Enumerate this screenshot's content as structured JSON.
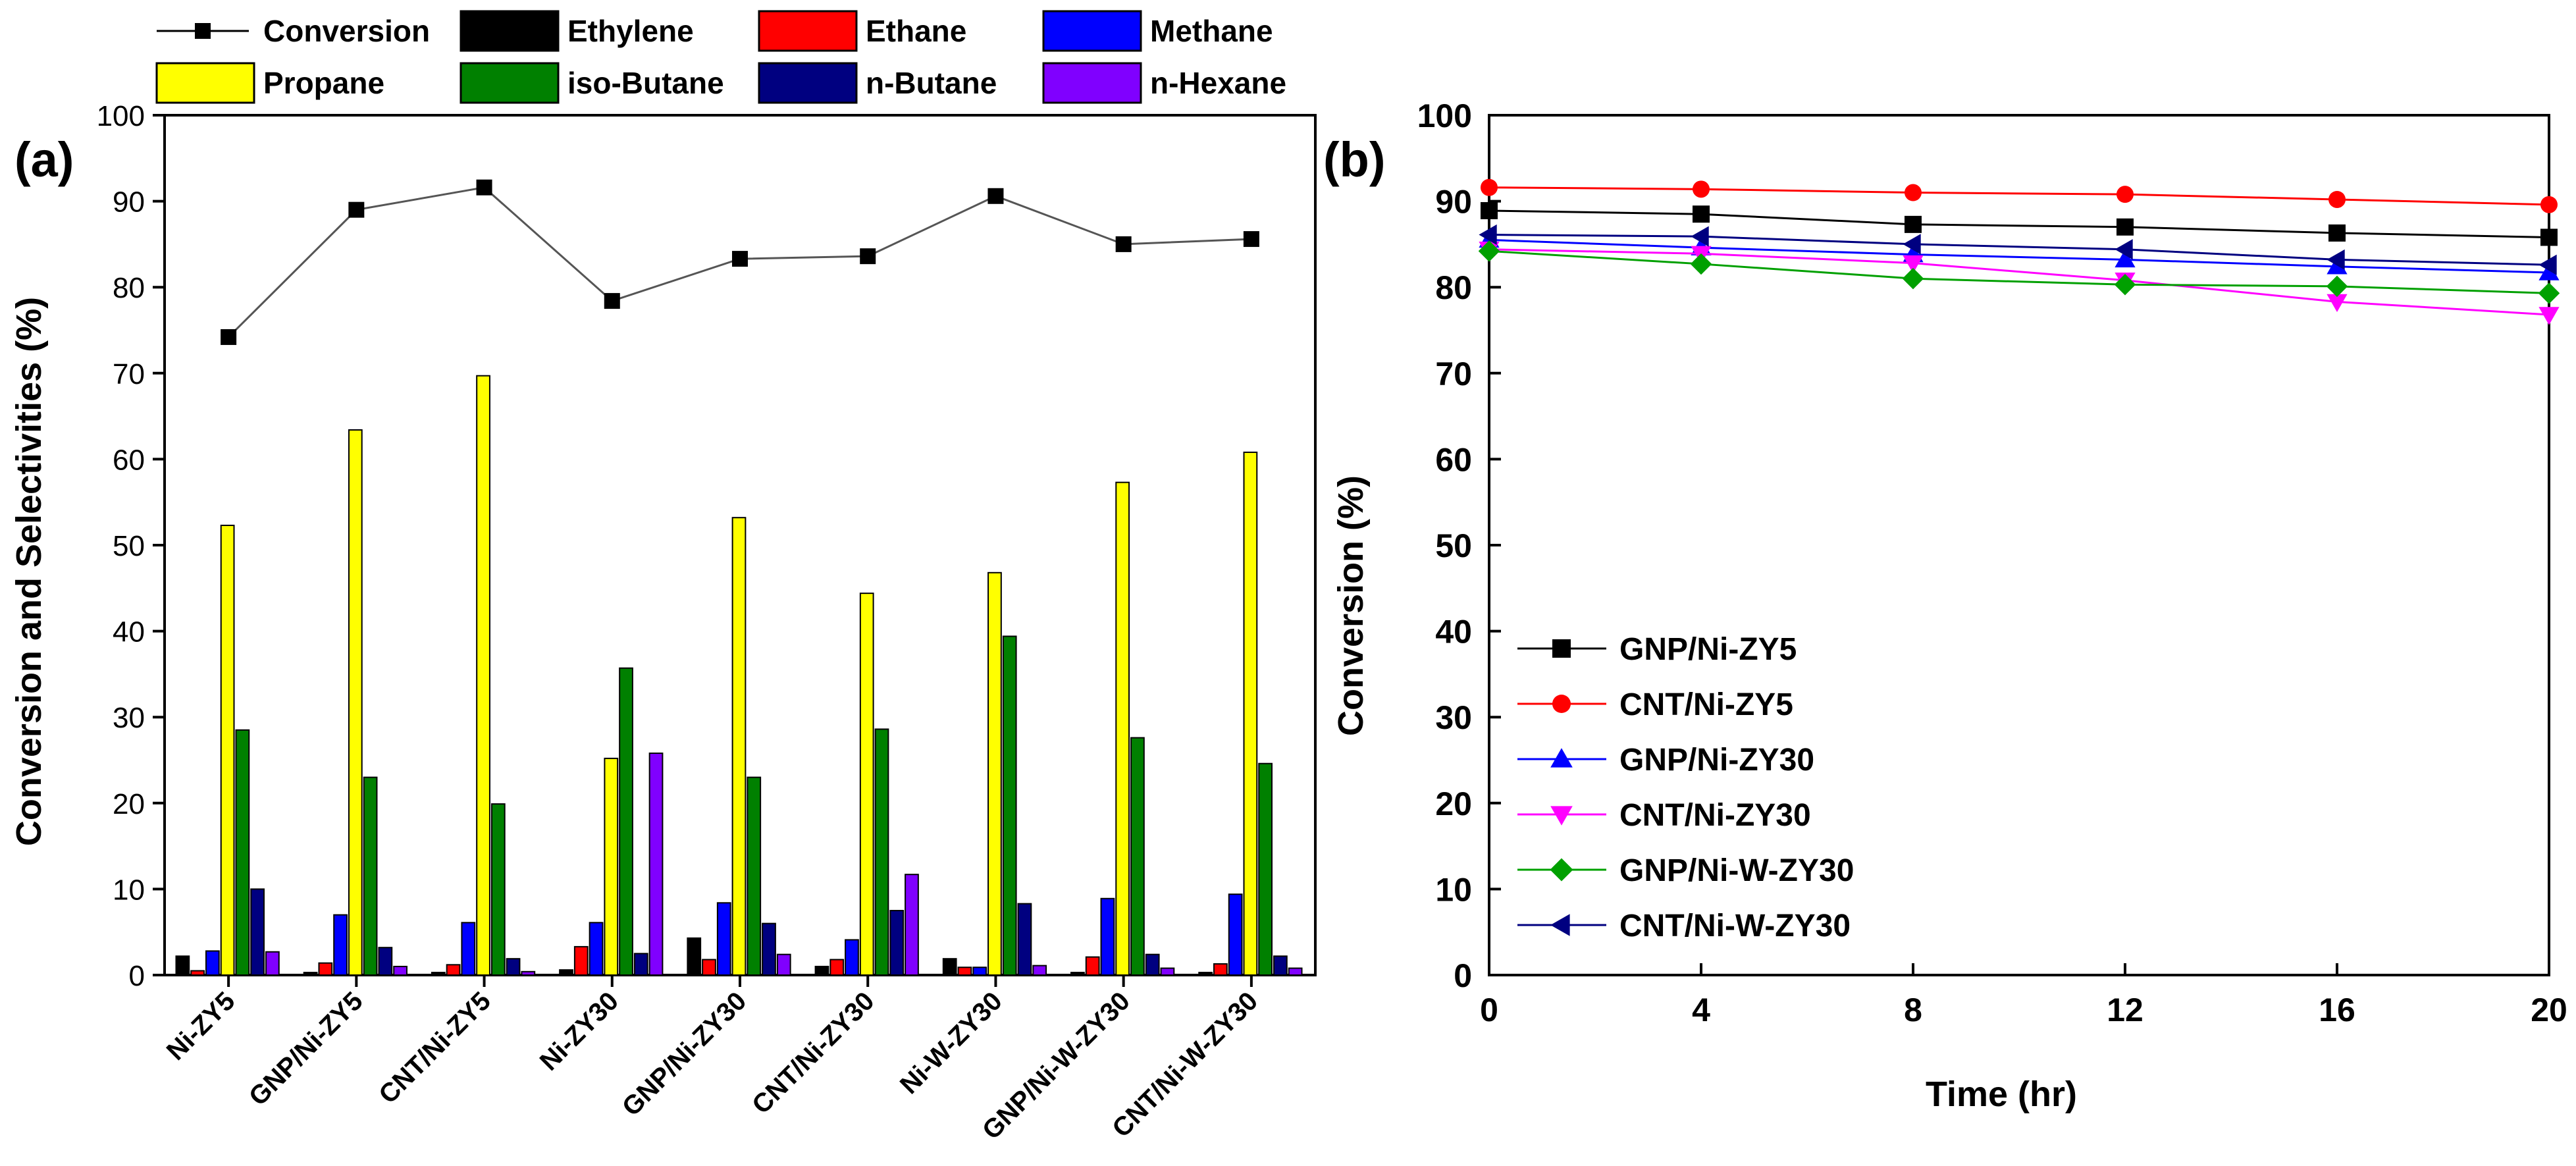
{
  "chart_data": [
    {
      "type": "bar",
      "panel_label": "(a)",
      "ylabel": "Conversion and Selectivities (%)",
      "ylim": [
        0,
        100
      ],
      "yticks": [
        0,
        10,
        20,
        30,
        40,
        50,
        60,
        70,
        80,
        90,
        100
      ],
      "grid": false,
      "legend_position": "top",
      "categories": [
        "Ni-ZY5",
        "GNP/Ni-ZY5",
        "CNT/Ni-ZY5",
        "Ni-ZY30",
        "GNP/Ni-ZY30",
        "CNT/Ni-ZY30",
        "Ni-W-ZY30",
        "GNP/Ni-W-ZY30",
        "CNT/Ni-W-ZY30"
      ],
      "line_series": {
        "name": "Conversion",
        "color": "#000000",
        "values": [
          74.2,
          89.0,
          91.6,
          78.4,
          83.3,
          83.6,
          90.6,
          85.0,
          85.6
        ]
      },
      "series": [
        {
          "name": "Ethylene",
          "color": "#000000",
          "values": [
            2.2,
            0.3,
            0.3,
            0.6,
            4.3,
            1.0,
            1.9,
            0.3,
            0.3
          ]
        },
        {
          "name": "Ethane",
          "color": "#ff0000",
          "values": [
            0.5,
            1.4,
            1.2,
            3.3,
            1.8,
            1.8,
            0.9,
            2.1,
            1.3
          ]
        },
        {
          "name": "Methane",
          "color": "#0000ff",
          "values": [
            2.8,
            7.0,
            6.1,
            6.1,
            8.4,
            4.1,
            0.9,
            8.9,
            9.4
          ]
        },
        {
          "name": "Propane",
          "color": "#ffff00",
          "values": [
            52.3,
            63.4,
            69.7,
            25.2,
            53.2,
            44.4,
            46.8,
            57.3,
            60.8
          ]
        },
        {
          "name": "iso-Butane",
          "color": "#008000",
          "values": [
            28.5,
            23.0,
            19.9,
            35.7,
            23.0,
            28.6,
            39.4,
            27.6,
            24.6
          ]
        },
        {
          "name": "n-Butane",
          "color": "#000080",
          "values": [
            10.0,
            3.2,
            1.9,
            2.5,
            6.0,
            7.5,
            8.3,
            2.4,
            2.2
          ]
        },
        {
          "name": "n-Hexane",
          "color": "#8000ff",
          "values": [
            2.7,
            1.0,
            0.4,
            25.8,
            2.4,
            11.7,
            1.1,
            0.8,
            0.8
          ]
        }
      ]
    },
    {
      "type": "line",
      "panel_label": "(b)",
      "xlabel": "Time (hr)",
      "ylabel": "Conversion (%)",
      "xlim": [
        0,
        20
      ],
      "ylim": [
        0,
        100
      ],
      "xticks": [
        0,
        4,
        8,
        12,
        16,
        20
      ],
      "yticks": [
        0,
        10,
        20,
        30,
        40,
        50,
        60,
        70,
        80,
        90,
        100
      ],
      "grid": false,
      "legend_position": "center-left",
      "x": [
        0,
        4,
        8,
        12,
        16,
        20
      ],
      "series": [
        {
          "name": "GNP/Ni-ZY5",
          "color": "#000000",
          "marker": "square",
          "values": [
            88.9,
            88.5,
            87.3,
            87.0,
            86.3,
            85.8
          ]
        },
        {
          "name": "CNT/Ni-ZY5",
          "color": "#ff0000",
          "marker": "circle",
          "values": [
            91.6,
            91.4,
            91.0,
            90.8,
            90.2,
            89.6
          ]
        },
        {
          "name": "GNP/Ni-ZY30",
          "color": "#0000ff",
          "marker": "triangle-up",
          "values": [
            85.5,
            84.6,
            83.8,
            83.2,
            82.4,
            81.7
          ]
        },
        {
          "name": "CNT/Ni-ZY30",
          "color": "#ff00ff",
          "marker": "triangle-down",
          "values": [
            84.4,
            83.9,
            82.8,
            80.8,
            78.3,
            76.8
          ]
        },
        {
          "name": "GNP/Ni-W-ZY30",
          "color": "#00a000",
          "marker": "diamond",
          "values": [
            84.2,
            82.7,
            81.0,
            80.3,
            80.1,
            79.3
          ]
        },
        {
          "name": "CNT/Ni-W-ZY30",
          "color": "#000080",
          "marker": "triangle-left",
          "values": [
            86.1,
            85.9,
            85.0,
            84.4,
            83.2,
            82.6
          ]
        }
      ]
    }
  ]
}
